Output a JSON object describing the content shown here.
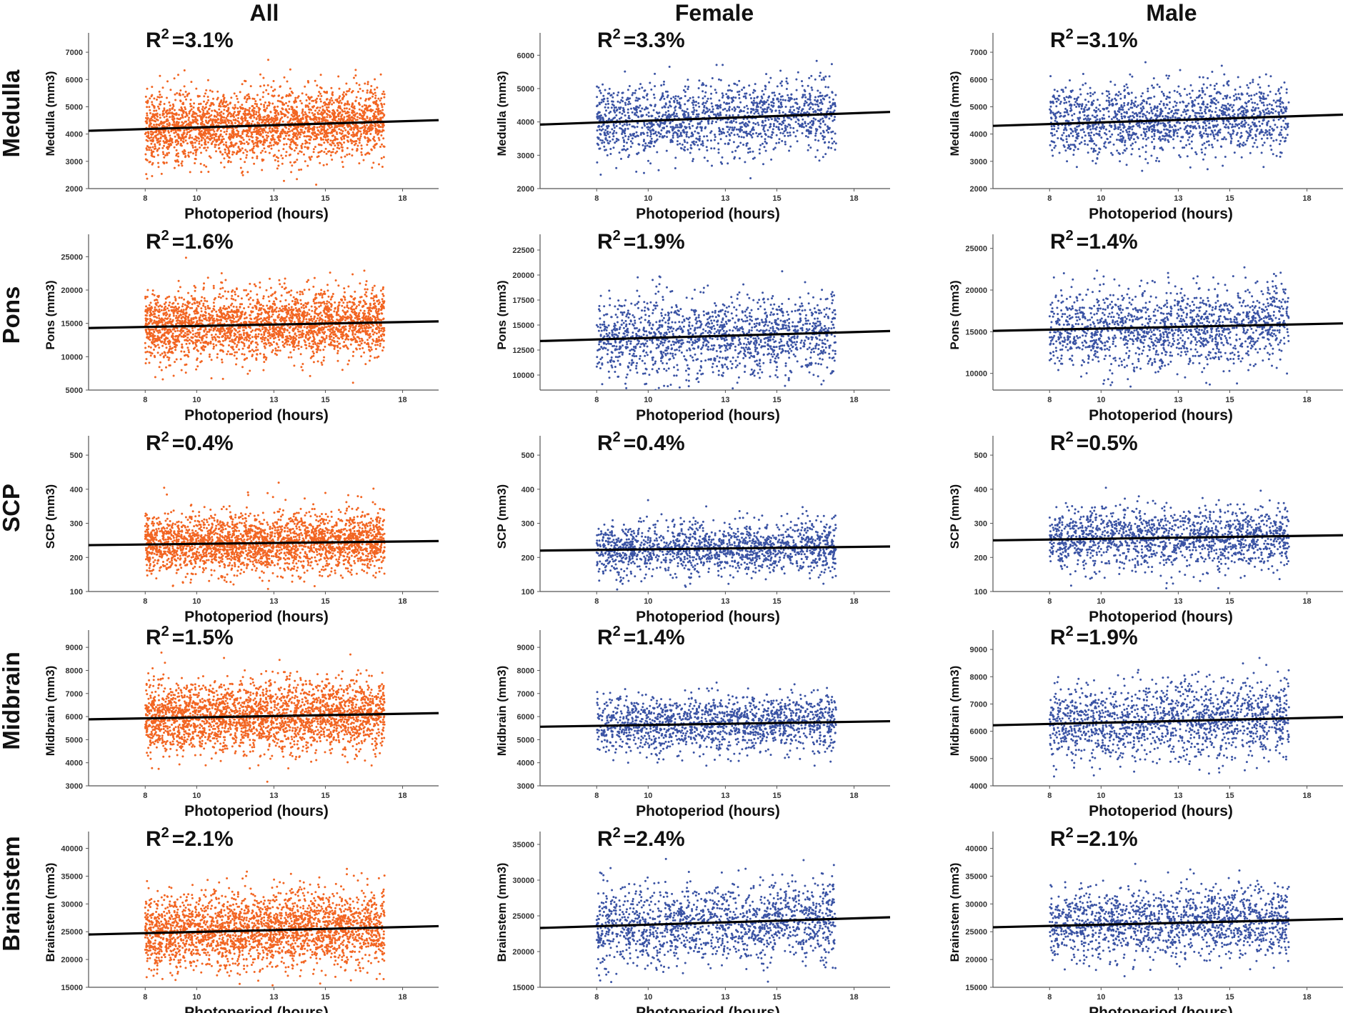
{
  "figure": {
    "column_headers": [
      "All",
      "Female",
      "Male"
    ],
    "row_headers": [
      "Medulla",
      "Pons",
      "SCP",
      "Midbrain",
      "Brainstem"
    ]
  },
  "colors": {
    "all": "#f26522",
    "female": "#3a53a4",
    "male": "#3a53a4",
    "line": "#000000"
  },
  "chart_data": [
    {
      "type": "scatter",
      "row": "Medulla",
      "group": "All",
      "r2_label": "R",
      "r2_value": "=3.1%",
      "xlabel": "Photoperiod (hours)",
      "ylabel": "Medulla (mm3)",
      "xticks": [
        8,
        10,
        13,
        15,
        18
      ],
      "xlim": [
        5.8,
        19.4
      ],
      "yticks": [
        2000,
        3000,
        4000,
        5000,
        6000,
        7000
      ],
      "ylim": [
        2000,
        7500
      ],
      "data_x_range": [
        8,
        17.3
      ],
      "data_y_center": 4250,
      "data_y_spread": 650,
      "fit": {
        "x": [
          5.8,
          19.4
        ],
        "y": [
          4120,
          4510
        ]
      }
    },
    {
      "type": "scatter",
      "row": "Medulla",
      "group": "Female",
      "r2_label": "R",
      "r2_value": "=3.3%",
      "xlabel": "Photoperiod (hours)",
      "ylabel": "Medulla (mm3)",
      "xticks": [
        8,
        10,
        13,
        15,
        18
      ],
      "xlim": [
        5.8,
        19.4
      ],
      "yticks": [
        2000,
        3000,
        4000,
        5000,
        6000
      ],
      "ylim": [
        2000,
        6500
      ],
      "data_x_range": [
        8,
        17.3
      ],
      "data_y_center": 4100,
      "data_y_spread": 550,
      "fit": {
        "x": [
          5.8,
          19.4
        ],
        "y": [
          3920,
          4300
        ]
      }
    },
    {
      "type": "scatter",
      "row": "Medulla",
      "group": "Male",
      "r2_label": "R",
      "r2_value": "=3.1%",
      "xlabel": "Photoperiod (hours)",
      "ylabel": "Medulla (mm3)",
      "xticks": [
        8,
        10,
        13,
        15,
        18
      ],
      "xlim": [
        5.8,
        19.4
      ],
      "yticks": [
        2000,
        3000,
        4000,
        5000,
        6000,
        7000
      ],
      "ylim": [
        2000,
        7500
      ],
      "data_x_range": [
        8,
        17.3
      ],
      "data_y_center": 4500,
      "data_y_spread": 650,
      "fit": {
        "x": [
          5.8,
          19.4
        ],
        "y": [
          4300,
          4710
        ]
      }
    },
    {
      "type": "scatter",
      "row": "Pons",
      "group": "All",
      "r2_label": "R",
      "r2_value": "=1.6%",
      "xlabel": "Photoperiod (hours)",
      "ylabel": "Pons (mm3)",
      "xticks": [
        8,
        10,
        13,
        15,
        18
      ],
      "xlim": [
        5.8,
        19.4
      ],
      "yticks": [
        5000,
        10000,
        15000,
        20000,
        25000
      ],
      "ylim": [
        5000,
        27500
      ],
      "data_x_range": [
        8,
        17.3
      ],
      "data_y_center": 14800,
      "data_y_spread": 2500,
      "fit": {
        "x": [
          5.8,
          19.4
        ],
        "y": [
          14300,
          15300
        ]
      }
    },
    {
      "type": "scatter",
      "row": "Pons",
      "group": "Female",
      "r2_label": "R",
      "r2_value": "=1.9%",
      "xlabel": "Photoperiod (hours)",
      "ylabel": "Pons (mm3)",
      "xticks": [
        8,
        10,
        13,
        15,
        18
      ],
      "xlim": [
        5.8,
        19.4
      ],
      "yticks": [
        10000,
        12500,
        15000,
        17500,
        20000,
        22500
      ],
      "ylim": [
        8500,
        23500
      ],
      "data_x_range": [
        8,
        17.3
      ],
      "data_y_center": 14000,
      "data_y_spread": 2000,
      "fit": {
        "x": [
          5.8,
          19.4
        ],
        "y": [
          13400,
          14400
        ]
      }
    },
    {
      "type": "scatter",
      "row": "Pons",
      "group": "Male",
      "r2_label": "R",
      "r2_value": "=1.4%",
      "xlabel": "Photoperiod (hours)",
      "ylabel": "Pons (mm3)",
      "xticks": [
        8,
        10,
        13,
        15,
        18
      ],
      "xlim": [
        5.8,
        19.4
      ],
      "yticks": [
        10000,
        15000,
        20000,
        25000
      ],
      "ylim": [
        8000,
        26000
      ],
      "data_x_range": [
        8,
        17.3
      ],
      "data_y_center": 15500,
      "data_y_spread": 2400,
      "fit": {
        "x": [
          5.8,
          19.4
        ],
        "y": [
          15100,
          16000
        ]
      }
    },
    {
      "type": "scatter",
      "row": "SCP",
      "group": "All",
      "r2_label": "R",
      "r2_value": "=0.4%",
      "xlabel": "Photoperiod (hours)",
      "ylabel": "SCP (mm3)",
      "xticks": [
        8,
        10,
        13,
        15,
        18
      ],
      "xlim": [
        5.8,
        19.4
      ],
      "yticks": [
        100,
        200,
        300,
        400,
        500
      ],
      "ylim": [
        100,
        540
      ],
      "data_x_range": [
        8,
        17.3
      ],
      "data_y_center": 240,
      "data_y_spread": 45,
      "fit": {
        "x": [
          5.8,
          19.4
        ],
        "y": [
          236,
          248
        ]
      }
    },
    {
      "type": "scatter",
      "row": "SCP",
      "group": "Female",
      "r2_label": "R",
      "r2_value": "=0.4%",
      "xlabel": "Photoperiod (hours)",
      "ylabel": "SCP (mm3)",
      "xticks": [
        8,
        10,
        13,
        15,
        18
      ],
      "xlim": [
        5.8,
        19.4
      ],
      "yticks": [
        100,
        200,
        300,
        400,
        500
      ],
      "ylim": [
        100,
        540
      ],
      "data_x_range": [
        8,
        17.3
      ],
      "data_y_center": 225,
      "data_y_spread": 38,
      "fit": {
        "x": [
          5.8,
          19.4
        ],
        "y": [
          220,
          232
        ]
      }
    },
    {
      "type": "scatter",
      "row": "SCP",
      "group": "Male",
      "r2_label": "R",
      "r2_value": "=0.5%",
      "xlabel": "Photoperiod (hours)",
      "ylabel": "SCP (mm3)",
      "xticks": [
        8,
        10,
        13,
        15,
        18
      ],
      "xlim": [
        5.8,
        19.4
      ],
      "yticks": [
        100,
        200,
        300,
        400,
        500
      ],
      "ylim": [
        100,
        540
      ],
      "data_x_range": [
        8,
        17.3
      ],
      "data_y_center": 258,
      "data_y_spread": 45,
      "fit": {
        "x": [
          5.8,
          19.4
        ],
        "y": [
          250,
          265
        ]
      }
    },
    {
      "type": "scatter",
      "row": "Midbrain",
      "group": "All",
      "r2_label": "R",
      "r2_value": "=1.5%",
      "xlabel": "Photoperiod (hours)",
      "ylabel": "Midbrain (mm3)",
      "xticks": [
        8,
        10,
        13,
        15,
        18
      ],
      "xlim": [
        5.8,
        19.4
      ],
      "yticks": [
        3000,
        4000,
        5000,
        6000,
        7000,
        8000,
        9000
      ],
      "ylim": [
        3000,
        9500
      ],
      "data_x_range": [
        8,
        17.3
      ],
      "data_y_center": 6000,
      "data_y_spread": 750,
      "fit": {
        "x": [
          5.8,
          19.4
        ],
        "y": [
          5880,
          6150
        ]
      }
    },
    {
      "type": "scatter",
      "row": "Midbrain",
      "group": "Female",
      "r2_label": "R",
      "r2_value": "=1.4%",
      "xlabel": "Photoperiod (hours)",
      "ylabel": "Midbrain (mm3)",
      "xticks": [
        8,
        10,
        13,
        15,
        18
      ],
      "xlim": [
        5.8,
        19.4
      ],
      "yticks": [
        3000,
        4000,
        5000,
        6000,
        7000,
        8000,
        9000
      ],
      "ylim": [
        3000,
        9500
      ],
      "data_x_range": [
        8,
        17.3
      ],
      "data_y_center": 5700,
      "data_y_spread": 620,
      "fit": {
        "x": [
          5.8,
          19.4
        ],
        "y": [
          5560,
          5800
        ]
      }
    },
    {
      "type": "scatter",
      "row": "Midbrain",
      "group": "Male",
      "r2_label": "R",
      "r2_value": "=1.9%",
      "xlabel": "Photoperiod (hours)",
      "ylabel": "Midbrain (mm3)",
      "xticks": [
        8,
        10,
        13,
        15,
        18
      ],
      "xlim": [
        5.8,
        19.4
      ],
      "yticks": [
        4000,
        5000,
        6000,
        7000,
        8000,
        9000
      ],
      "ylim": [
        4000,
        9500
      ],
      "data_x_range": [
        8,
        17.3
      ],
      "data_y_center": 6400,
      "data_y_spread": 700,
      "fit": {
        "x": [
          5.8,
          19.4
        ],
        "y": [
          6220,
          6520
        ]
      }
    },
    {
      "type": "scatter",
      "row": "Brainstem",
      "group": "All",
      "r2_label": "R",
      "r2_value": "=2.1%",
      "xlabel": "Photoperiod (hours)",
      "ylabel": "Brainstem (mm3)",
      "xticks": [
        8,
        10,
        13,
        15,
        18
      ],
      "xlim": [
        5.8,
        19.4
      ],
      "yticks": [
        15000,
        20000,
        25000,
        30000,
        35000,
        40000
      ],
      "ylim": [
        15000,
        42000
      ],
      "data_x_range": [
        8,
        17.3
      ],
      "data_y_center": 25500,
      "data_y_spread": 3300,
      "fit": {
        "x": [
          5.8,
          19.4
        ],
        "y": [
          24500,
          26000
        ]
      }
    },
    {
      "type": "scatter",
      "row": "Brainstem",
      "group": "Female",
      "r2_label": "R",
      "r2_value": "=2.4%",
      "xlabel": "Photoperiod (hours)",
      "ylabel": "Brainstem (mm3)",
      "xticks": [
        8,
        10,
        13,
        15,
        18
      ],
      "xlim": [
        5.8,
        19.4
      ],
      "yticks": [
        15000,
        20000,
        25000,
        30000,
        35000
      ],
      "ylim": [
        15000,
        36000
      ],
      "data_x_range": [
        8,
        17.3
      ],
      "data_y_center": 24000,
      "data_y_spread": 2800,
      "fit": {
        "x": [
          5.8,
          19.4
        ],
        "y": [
          23300,
          24800
        ]
      }
    },
    {
      "type": "scatter",
      "row": "Brainstem",
      "group": "Male",
      "r2_label": "R",
      "r2_value": "=2.1%",
      "xlabel": "Photoperiod (hours)",
      "ylabel": "Brainstem (mm3)",
      "xticks": [
        8,
        10,
        13,
        15,
        18
      ],
      "xlim": [
        5.8,
        19.4
      ],
      "yticks": [
        15000,
        20000,
        25000,
        30000,
        35000,
        40000
      ],
      "ylim": [
        15000,
        42000
      ],
      "data_x_range": [
        8,
        17.3
      ],
      "data_y_center": 26800,
      "data_y_spread": 3100,
      "fit": {
        "x": [
          5.8,
          19.4
        ],
        "y": [
          25800,
          27300
        ]
      }
    }
  ]
}
